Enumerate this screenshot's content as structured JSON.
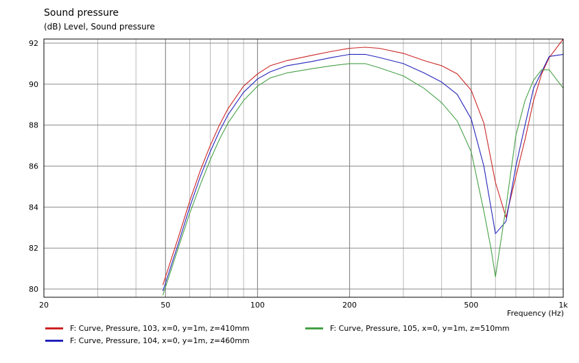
{
  "chart_data": {
    "type": "line",
    "title": "Sound pressure",
    "ylabel": "(dB)  Level, Sound pressure",
    "xlabel": "Frequency  (Hz)",
    "xscale": "log",
    "xlim": [
      20,
      1000
    ],
    "ylim": [
      79.6,
      92.2
    ],
    "x_ticks": [
      {
        "value": 20,
        "label": "20"
      },
      {
        "value": 50,
        "label": "50"
      },
      {
        "value": 100,
        "label": "100"
      },
      {
        "value": 200,
        "label": "200"
      },
      {
        "value": 500,
        "label": "500"
      },
      {
        "value": 1000,
        "label": "1k"
      }
    ],
    "y_ticks": [
      {
        "value": 80,
        "label": "80"
      },
      {
        "value": 82,
        "label": "82"
      },
      {
        "value": 84,
        "label": "84"
      },
      {
        "value": 86,
        "label": "86"
      },
      {
        "value": 88,
        "label": "88"
      },
      {
        "value": 90,
        "label": "90"
      },
      {
        "value": 92,
        "label": "92"
      }
    ],
    "grid": true,
    "legend_position": "bottom",
    "series": [
      {
        "name": "F: Curve, Pressure, 103, x=0, y=1m, z=410mm",
        "color": "#cc2222",
        "points": [
          [
            49,
            80.2
          ],
          [
            55,
            82.5
          ],
          [
            60,
            84.3
          ],
          [
            65,
            85.8
          ],
          [
            70,
            87.0
          ],
          [
            75,
            88.0
          ],
          [
            80,
            88.8
          ],
          [
            90,
            89.9
          ],
          [
            100,
            90.5
          ],
          [
            110,
            90.9
          ],
          [
            125,
            91.15
          ],
          [
            150,
            91.4
          ],
          [
            175,
            91.6
          ],
          [
            200,
            91.75
          ],
          [
            225,
            91.8
          ],
          [
            250,
            91.75
          ],
          [
            300,
            91.5
          ],
          [
            350,
            91.15
          ],
          [
            400,
            90.9
          ],
          [
            450,
            90.5
          ],
          [
            500,
            89.7
          ],
          [
            550,
            88.1
          ],
          [
            600,
            85.2
          ],
          [
            650,
            83.5
          ],
          [
            700,
            85.5
          ],
          [
            750,
            87.3
          ],
          [
            800,
            89.2
          ],
          [
            850,
            90.5
          ],
          [
            900,
            91.3
          ],
          [
            1000,
            92.2
          ]
        ]
      },
      {
        "name": "F: Curve, Pressure, 104, x=0, y=1m, z=460mm",
        "color": "#2222bb",
        "points": [
          [
            49,
            79.9
          ],
          [
            55,
            82.2
          ],
          [
            60,
            84.0
          ],
          [
            65,
            85.5
          ],
          [
            70,
            86.7
          ],
          [
            75,
            87.7
          ],
          [
            80,
            88.5
          ],
          [
            90,
            89.6
          ],
          [
            100,
            90.25
          ],
          [
            110,
            90.6
          ],
          [
            125,
            90.9
          ],
          [
            150,
            91.1
          ],
          [
            175,
            91.3
          ],
          [
            200,
            91.45
          ],
          [
            225,
            91.45
          ],
          [
            250,
            91.3
          ],
          [
            300,
            91.0
          ],
          [
            350,
            90.55
          ],
          [
            400,
            90.1
          ],
          [
            450,
            89.5
          ],
          [
            500,
            88.3
          ],
          [
            550,
            86.0
          ],
          [
            600,
            82.7
          ],
          [
            650,
            83.3
          ],
          [
            700,
            86.0
          ],
          [
            750,
            88.0
          ],
          [
            800,
            89.8
          ],
          [
            850,
            90.6
          ],
          [
            900,
            91.35
          ],
          [
            1000,
            91.45
          ]
        ]
      },
      {
        "name": "F: Curve, Pressure, 105, x=0, y=1m, z=510mm",
        "color": "#44a044",
        "points": [
          [
            49,
            79.7
          ],
          [
            55,
            82.0
          ],
          [
            60,
            83.7
          ],
          [
            65,
            85.1
          ],
          [
            70,
            86.3
          ],
          [
            75,
            87.3
          ],
          [
            80,
            88.1
          ],
          [
            90,
            89.2
          ],
          [
            100,
            89.9
          ],
          [
            110,
            90.3
          ],
          [
            125,
            90.55
          ],
          [
            150,
            90.75
          ],
          [
            175,
            90.9
          ],
          [
            200,
            91.0
          ],
          [
            225,
            91.0
          ],
          [
            250,
            90.8
          ],
          [
            300,
            90.4
          ],
          [
            350,
            89.8
          ],
          [
            400,
            89.1
          ],
          [
            450,
            88.2
          ],
          [
            500,
            86.7
          ],
          [
            550,
            83.8
          ],
          [
            580,
            82.0
          ],
          [
            600,
            80.6
          ],
          [
            650,
            84.0
          ],
          [
            700,
            87.5
          ],
          [
            750,
            89.2
          ],
          [
            800,
            90.2
          ],
          [
            850,
            90.7
          ],
          [
            900,
            90.7
          ],
          [
            1000,
            89.8
          ]
        ]
      }
    ]
  }
}
